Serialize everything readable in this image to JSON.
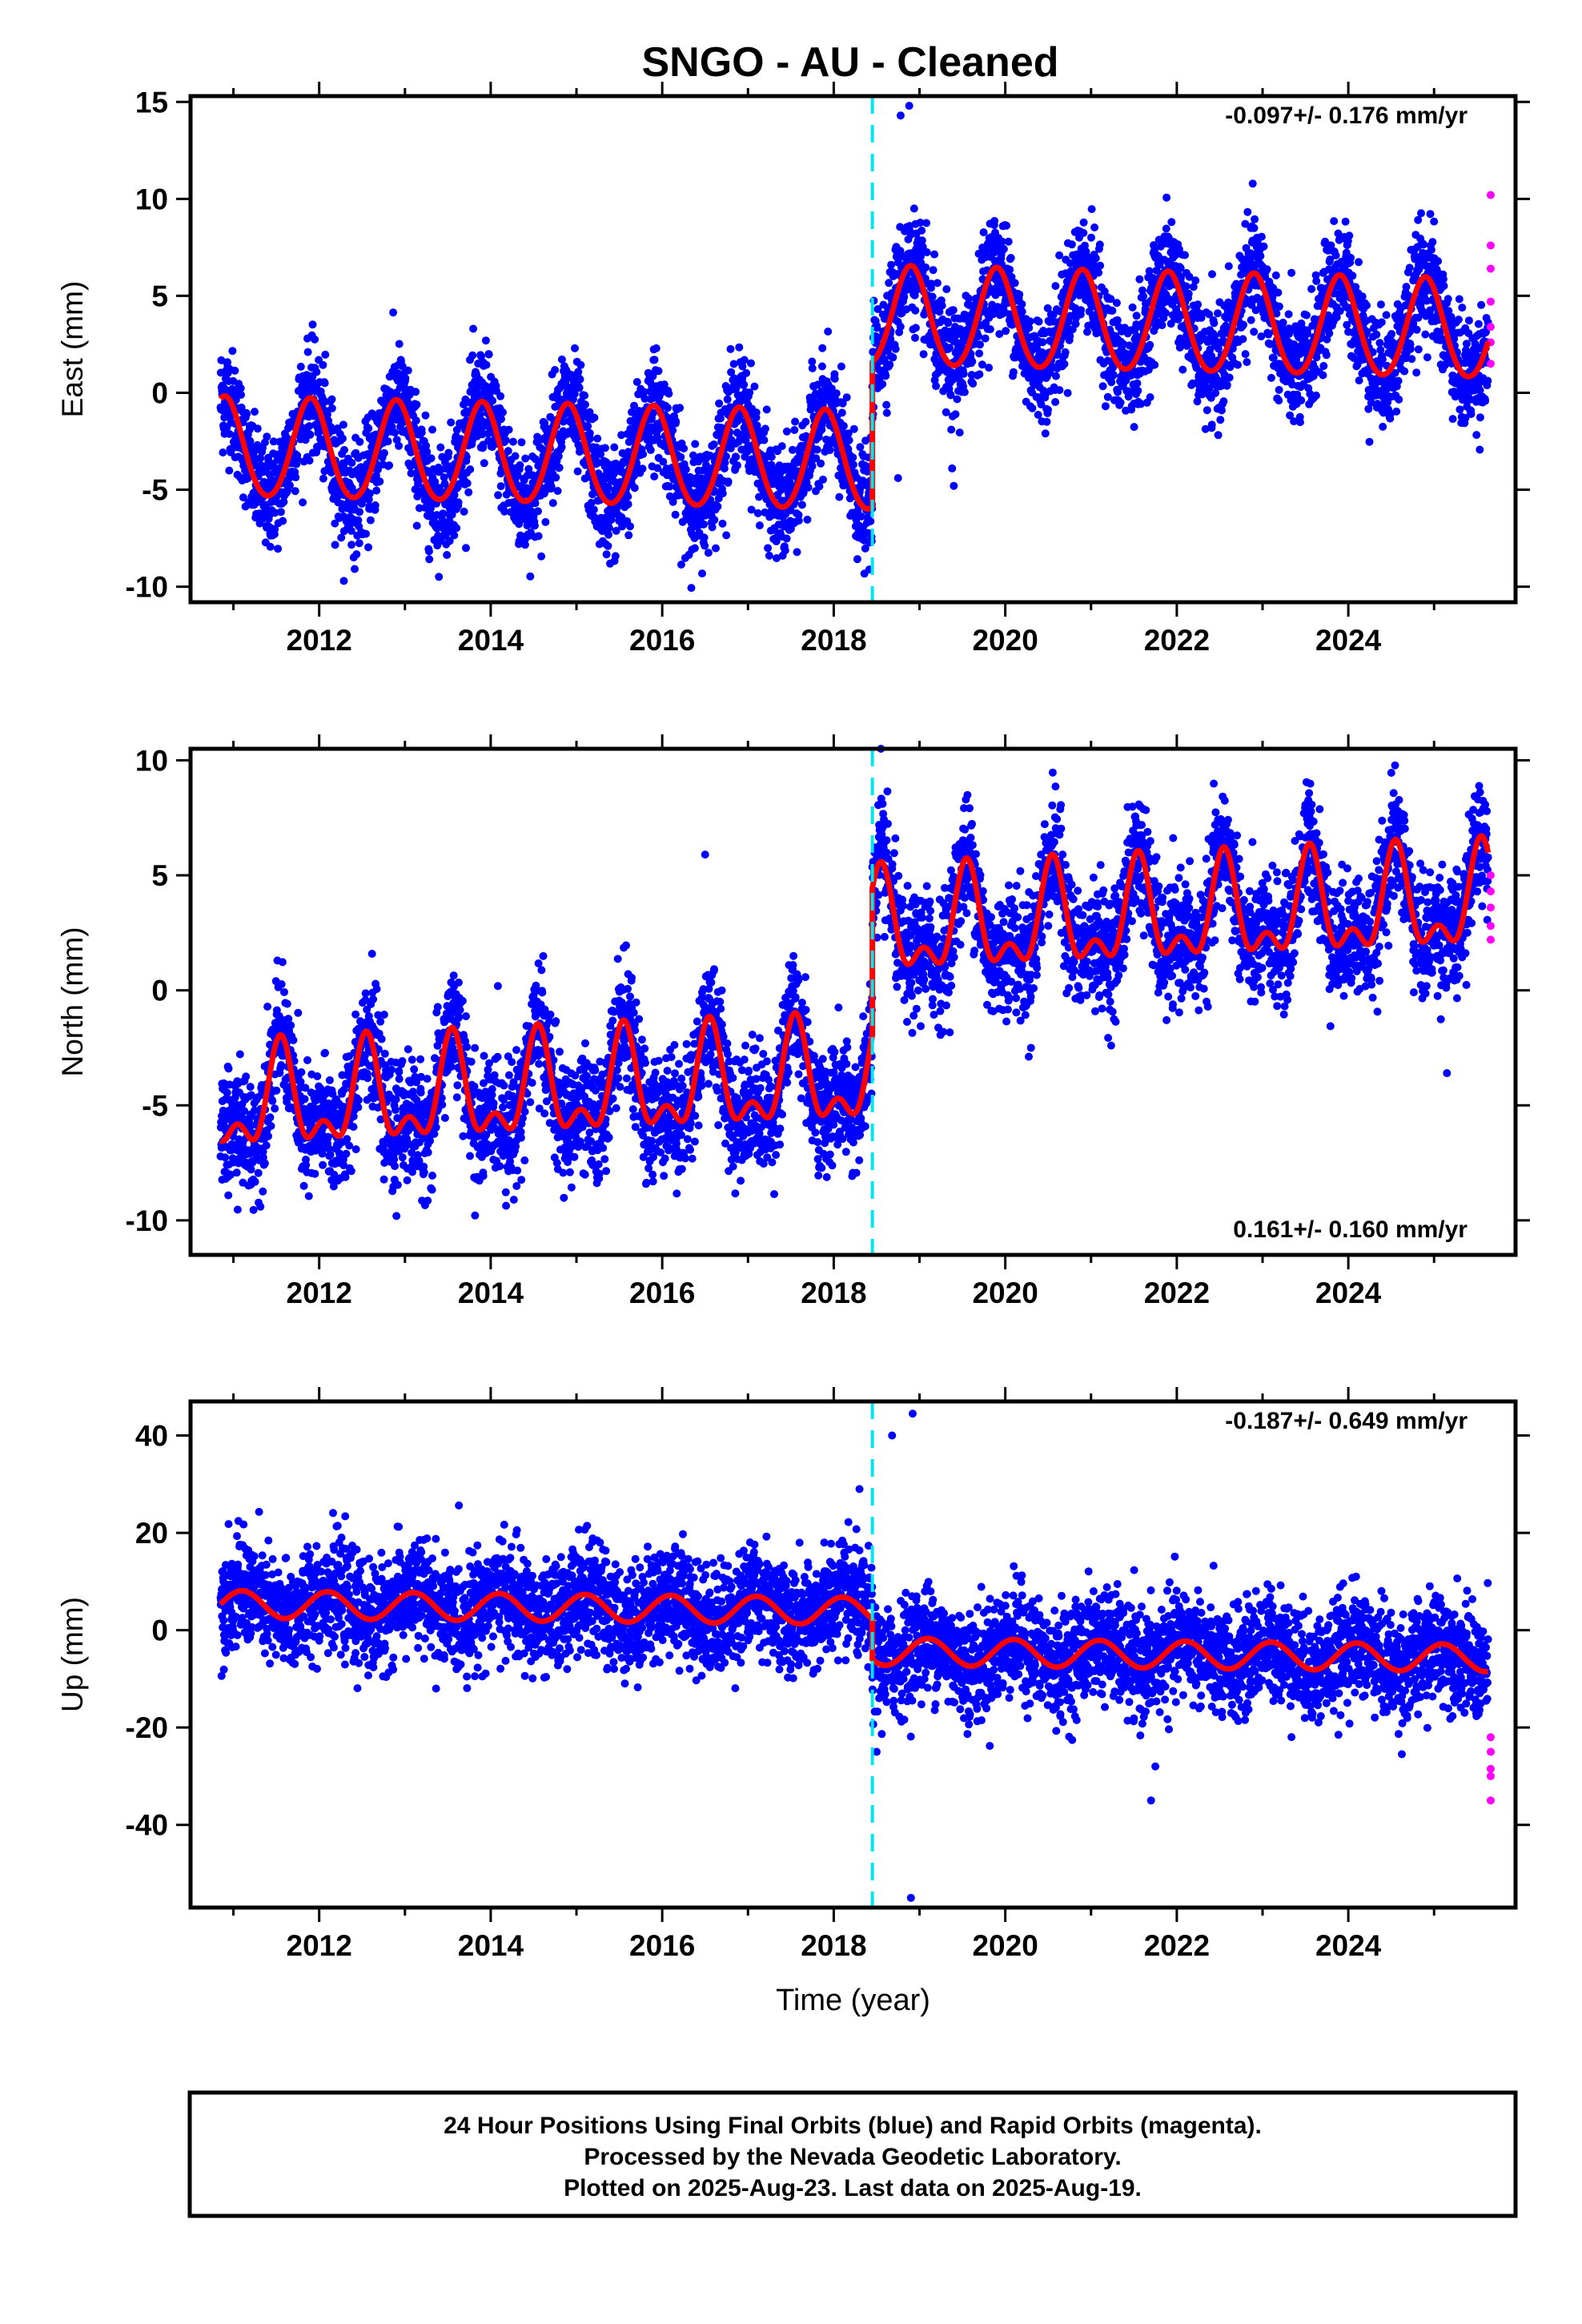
{
  "title": "SNGO  - AU - Cleaned",
  "footer": {
    "line1": "24 Hour Positions Using Final Orbits (blue) and Rapid Orbits (magenta).",
    "line2": "Processed by the Nevada Geodetic Laboratory.",
    "line3": "Plotted on 2025-Aug-23. Last data on 2025-Aug-19."
  },
  "colors": {
    "final_orbits": "#0000ff",
    "rapid_orbits": "#ff00ff",
    "model": "#ff0000",
    "event_line": "#00e5ee"
  },
  "chart_data": [
    {
      "type": "scatter",
      "ylabel": "East (mm)",
      "xlabel": "",
      "xlim": [
        2010.5,
        2025.95
      ],
      "ylim": [
        -10.8,
        15.3
      ],
      "x_ticks": [
        2012,
        2014,
        2016,
        2018,
        2020,
        2022,
        2024
      ],
      "y_ticks": [
        -10,
        -5,
        0,
        5,
        10,
        15
      ],
      "rate_label": "-0.097+/- 0.176 mm/yr",
      "rate_position": "top-right",
      "grid": false,
      "event_year": 2018.45,
      "data_start": 2010.85,
      "data_end": 2025.63,
      "model": {
        "before_offset": -3.6,
        "after_offset": 3.9,
        "trend_mm_per_yr": -0.097,
        "annual_amplitude": 2.55,
        "peak_phase_year_fraction": 0.9,
        "semiannual_amplitude": 0.2,
        "noise_sd": 1.4
      },
      "outliers": [
        [
          2018.78,
          14.3
        ],
        [
          2018.88,
          14.8
        ],
        [
          2018.75,
          -4.4
        ],
        [
          2019.4,
          -4.8
        ],
        [
          2019.38,
          -3.9
        ]
      ],
      "rapid_orbits": [
        [
          2025.66,
          10.2
        ],
        [
          2025.66,
          7.6
        ],
        [
          2025.66,
          6.4
        ],
        [
          2025.66,
          4.7
        ],
        [
          2025.66,
          3.4
        ],
        [
          2025.66,
          2.6
        ],
        [
          2025.66,
          1.5
        ]
      ]
    },
    {
      "type": "scatter",
      "ylabel": "North (mm)",
      "xlabel": "",
      "xlim": [
        2010.5,
        2025.95
      ],
      "ylim": [
        -11.5,
        10.5
      ],
      "x_ticks": [
        2012,
        2014,
        2016,
        2018,
        2020,
        2022,
        2024
      ],
      "y_ticks": [
        -10,
        -5,
        0,
        5,
        10
      ],
      "rate_label": "0.161+/- 0.160 mm/yr",
      "rate_position": "bottom-right",
      "grid": false,
      "event_year": 2018.45,
      "data_start": 2010.85,
      "data_end": 2025.63,
      "model": {
        "before_offset": -3.9,
        "after_offset": 2.5,
        "trend_mm_per_yr": 0.161,
        "annual_amplitude": 1.9,
        "peak_phase_year_fraction": 0.55,
        "semiannual_amplitude": 1.1,
        "noise_sd": 1.3
      },
      "outliers": [
        [
          2018.55,
          10.5
        ],
        [
          2016.5,
          5.9
        ],
        [
          2020.3,
          -2.5
        ],
        [
          2025.15,
          -3.6
        ]
      ],
      "rapid_orbits": [
        [
          2025.66,
          5.0
        ],
        [
          2025.66,
          4.3
        ],
        [
          2025.66,
          3.6
        ],
        [
          2025.66,
          2.8
        ],
        [
          2025.66,
          2.2
        ]
      ]
    },
    {
      "type": "scatter",
      "ylabel": "Up (mm)",
      "xlabel": "Time (year)",
      "xlim": [
        2010.5,
        2025.95
      ],
      "ylim": [
        -57,
        47
      ],
      "x_ticks": [
        2012,
        2014,
        2016,
        2018,
        2020,
        2022,
        2024
      ],
      "y_ticks": [
        -40,
        -20,
        0,
        20,
        40
      ],
      "rate_label": "-0.187+/- 0.649 mm/yr",
      "rate_position": "top-right",
      "grid": false,
      "event_year": 2018.45,
      "data_start": 2010.85,
      "data_end": 2025.63,
      "model": {
        "before_offset": 4.0,
        "after_offset": -4.3,
        "trend_mm_per_yr": -0.187,
        "annual_amplitude": 2.8,
        "peak_phase_year_fraction": 0.1,
        "semiannual_amplitude": 0.0,
        "noise_sd": 5.5
      },
      "outliers": [
        [
          2018.68,
          40
        ],
        [
          2018.92,
          44.5
        ],
        [
          2018.9,
          -55
        ],
        [
          2018.5,
          -25
        ],
        [
          2021.7,
          -35
        ],
        [
          2021.75,
          -28
        ],
        [
          2018.3,
          29
        ]
      ],
      "rapid_orbits": [
        [
          2025.66,
          -22
        ],
        [
          2025.66,
          -25
        ],
        [
          2025.66,
          -28.5
        ],
        [
          2025.66,
          -30
        ],
        [
          2025.66,
          -35
        ]
      ]
    }
  ]
}
